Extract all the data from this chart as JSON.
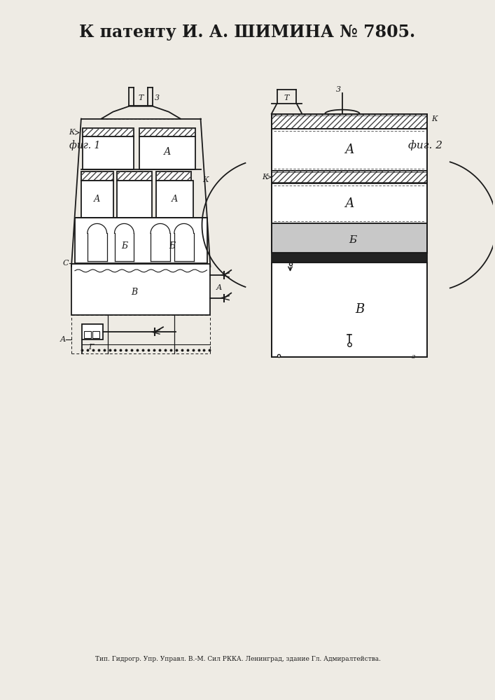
{
  "title": "К патенту И. А. ШИМИНА № 7805.",
  "footer": "Тип. Гидрогр. Упр. Управл. В.-М. Сил РККА. Ленинград, здание Гл. Адмиралтейства.",
  "fig1_label": "фиг. 1",
  "fig2_label": "фиг. 2",
  "bg_color": "#f0ede8",
  "line_color": "#1a1a1a",
  "title_fontsize": 17,
  "label_fontsize": 10
}
